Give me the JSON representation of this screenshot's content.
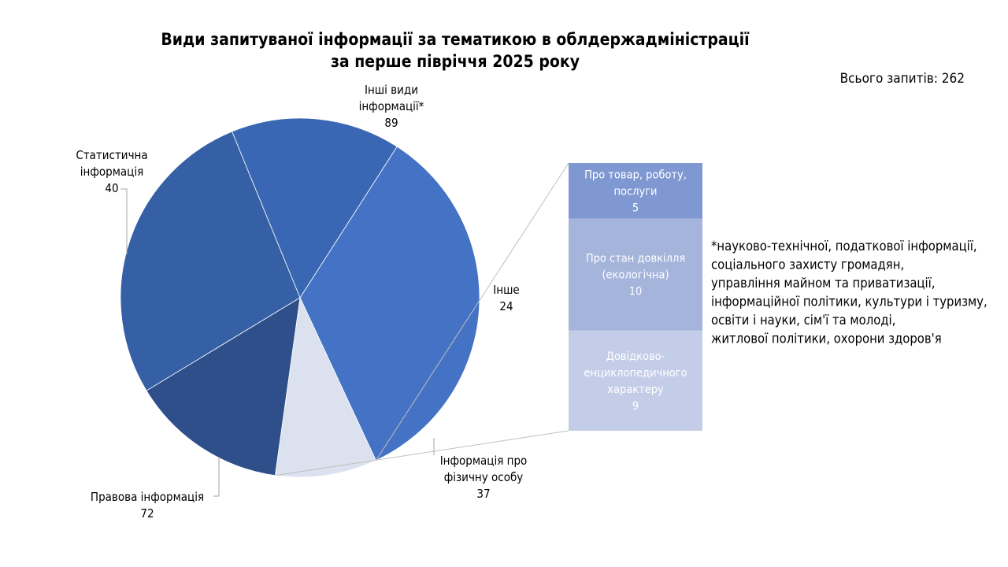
{
  "chart_data": {
    "type": "bar-of-pie",
    "title_lines": [
      "Види запитуваної інформації за тематикою в облдержадміністрації",
      "за перше півріччя 2025 року"
    ],
    "total_label": "Всього запитів: 262",
    "pie": [
      {
        "name_lines": [
          "Інші види",
          "інформації*"
        ],
        "value": 89,
        "color": "#4472C4"
      },
      {
        "name_lines": [
          "Інше"
        ],
        "value": 24,
        "color": "#DCE1EF"
      },
      {
        "name_lines": [
          "Інформація про",
          "фізичну особу"
        ],
        "value": 37,
        "color": "#2F4F8A"
      },
      {
        "name_lines": [
          "Правова інформація"
        ],
        "value": 72,
        "color": "#3660A6"
      },
      {
        "name_lines": [
          "Статистична",
          "інформація"
        ],
        "value": 40,
        "color": "#3A67B3"
      }
    ],
    "bar": [
      {
        "name_lines": [
          "Про товар, роботу,",
          "послуги"
        ],
        "value": 5,
        "color": "#7F98D2"
      },
      {
        "name_lines": [
          "Про стан довкілля",
          "(екологічна)"
        ],
        "value": 10,
        "color": "#A5B4DB"
      },
      {
        "name_lines": [
          "Довідково-",
          "енциклопедичного",
          "характеру"
        ],
        "value": 9,
        "color": "#C3CDE7"
      }
    ],
    "footnote_lines": [
      "*науково-технічної, податкової інформації,",
      "соціального захисту громадян,",
      "управління майном та приватизації,",
      "інформаційної політики, культури і туризму,",
      "освіти і науки, сім'ї та молоді,",
      "житлової політики, охорони здоров'я"
    ]
  }
}
